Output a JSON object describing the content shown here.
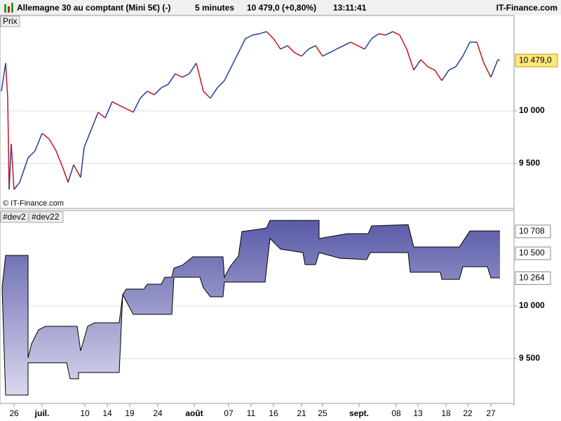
{
  "header": {
    "instrument": "Allemagne 30 au comptant (Mini 5€) (-)",
    "interval": "5 minutes",
    "quote": "10 479,0 (+0,80%)",
    "time": "13:11:41",
    "brand": "IT-Finance.com"
  },
  "chart_data": [
    {
      "type": "line",
      "label": "Prix",
      "annotation": "© IT-Finance.com",
      "color": "#1f3c9c",
      "down_color": "#cc1020",
      "xlim": [
        0,
        733
      ],
      "ylim": [
        9073,
        10907
      ],
      "yticks": [
        {
          "value": 10000,
          "label": "10 000"
        },
        {
          "value": 9500,
          "label": "9 500"
        }
      ],
      "last": {
        "value": 10479,
        "label": "10 479,0"
      },
      "x": [
        2,
        8,
        11,
        13,
        16,
        20,
        28,
        40,
        50,
        60,
        70,
        80,
        90,
        97,
        105,
        115,
        120,
        130,
        140,
        150,
        160,
        170,
        180,
        190,
        200,
        210,
        220,
        230,
        240,
        250,
        260,
        270,
        280,
        290,
        300,
        310,
        320,
        330,
        340,
        350,
        360,
        370,
        380,
        390,
        400,
        410,
        420,
        430,
        440,
        450,
        460,
        470,
        480,
        490,
        500,
        510,
        520,
        530,
        540,
        550,
        560,
        570,
        580,
        590,
        600,
        610,
        620,
        630,
        640,
        650,
        660,
        670,
        680,
        690,
        700,
        710,
        713
      ],
      "values": [
        10187,
        10453,
        10120,
        9253,
        9687,
        9253,
        9320,
        9553,
        9620,
        9787,
        9733,
        9620,
        9453,
        9320,
        9487,
        9367,
        9653,
        9820,
        9987,
        9933,
        10087,
        10053,
        10020,
        9987,
        10120,
        10187,
        10153,
        10220,
        10253,
        10353,
        10320,
        10353,
        10453,
        10187,
        10120,
        10220,
        10287,
        10420,
        10553,
        10687,
        10720,
        10733,
        10753,
        10687,
        10587,
        10620,
        10553,
        10520,
        10587,
        10620,
        10520,
        10553,
        10587,
        10620,
        10653,
        10620,
        10587,
        10687,
        10733,
        10720,
        10753,
        10720,
        10587,
        10387,
        10487,
        10420,
        10387,
        10287,
        10387,
        10420,
        10520,
        10653,
        10653,
        10453,
        10320,
        10487,
        10479
      ]
    },
    {
      "type": "band",
      "xlim": [
        0,
        733
      ],
      "ylim": [
        9073,
        10907
      ],
      "yticks": [
        {
          "value": 10000,
          "label": "10 000"
        },
        {
          "value": 9500,
          "label": "9 500"
        }
      ],
      "markers": [
        {
          "value": 10708,
          "label": "10 708"
        },
        {
          "value": 10500,
          "label": "10 500"
        },
        {
          "value": 10264,
          "label": "10 264"
        }
      ],
      "xticks": [
        {
          "value": 20,
          "label": "26"
        },
        {
          "value": 60,
          "label": "juil."
        },
        {
          "value": 121,
          "label": "10"
        },
        {
          "value": 153,
          "label": "14"
        },
        {
          "value": 185,
          "label": "19"
        },
        {
          "value": 225,
          "label": "24"
        },
        {
          "value": 277,
          "label": "août"
        },
        {
          "value": 326,
          "label": "07"
        },
        {
          "value": 358,
          "label": "11"
        },
        {
          "value": 390,
          "label": "16"
        },
        {
          "value": 430,
          "label": "21"
        },
        {
          "value": 460,
          "label": "25"
        },
        {
          "value": 512,
          "label": "sept."
        },
        {
          "value": 565,
          "label": "08"
        },
        {
          "value": 596,
          "label": "13"
        },
        {
          "value": 636,
          "label": "18"
        },
        {
          "value": 667,
          "label": "22"
        },
        {
          "value": 700,
          "label": "27"
        }
      ],
      "series": [
        {
          "name": "#dev2",
          "color": "#000000",
          "x": [
            3,
            8,
            40,
            40,
            45,
            55,
            65,
            110,
            115,
            125,
            135,
            170,
            175,
            180,
            205,
            210,
            230,
            235,
            245,
            248,
            260,
            275,
            318,
            320,
            328,
            340,
            345,
            360,
            380,
            385,
            455,
            455,
            495,
            525,
            530,
            582,
            590,
            655,
            670,
            713
          ],
          "values": [
            10173,
            10480,
            10480,
            9507,
            9640,
            9773,
            9807,
            9807,
            9573,
            9807,
            9840,
            9840,
            10107,
            10160,
            10160,
            10207,
            10207,
            10273,
            10273,
            10360,
            10387,
            10467,
            10467,
            10273,
            10373,
            10473,
            10707,
            10720,
            10740,
            10813,
            10813,
            10640,
            10687,
            10687,
            10760,
            10773,
            10560,
            10560,
            10713,
            10713
          ]
        },
        {
          "name": "#dev22",
          "color": "#000000",
          "x": [
            3,
            8,
            40,
            40,
            95,
            100,
            112,
            112,
            170,
            175,
            190,
            245,
            248,
            285,
            290,
            300,
            318,
            320,
            378,
            385,
            400,
            432,
            435,
            450,
            455,
            485,
            523,
            528,
            582,
            585,
            628,
            630,
            655,
            660,
            695,
            700,
            713
          ],
          "values": [
            10173,
            9153,
            9153,
            9460,
            9460,
            9307,
            9307,
            9367,
            9367,
            10107,
            9920,
            9920,
            10273,
            10273,
            10173,
            10087,
            10087,
            10227,
            10227,
            10640,
            10540,
            10507,
            10393,
            10393,
            10507,
            10453,
            10440,
            10507,
            10507,
            10320,
            10320,
            10253,
            10253,
            10373,
            10373,
            10267,
            10267
          ]
        }
      ]
    }
  ]
}
